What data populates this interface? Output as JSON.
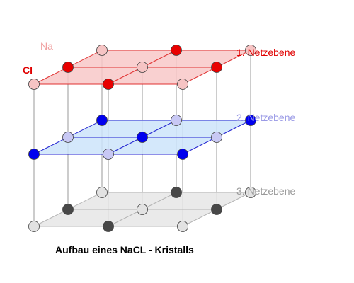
{
  "title": "Aufbau eines NaCL - Kristalls",
  "ion_labels": {
    "na": "Na",
    "cl": "Cl"
  },
  "planes": [
    {
      "label": "1. Netzebene",
      "label_color": "#e00000",
      "fill": "#f8c8c8",
      "edge": "#e03030",
      "na_color": "#f6c4c4",
      "cl_color": "#e80000"
    },
    {
      "label": "2. Netzebene",
      "label_color": "#9a9ae6",
      "fill": "#cce4fa",
      "edge": "#1f1fd0",
      "na_color": "#c8c8f4",
      "cl_color": "#0000ee"
    },
    {
      "label": "3. Netzebene",
      "label_color": "#9a9a9a",
      "fill": "#e6e6e6",
      "edge": "#b4b4b4",
      "na_color": "#e2e2e2",
      "cl_color": "#484848"
    }
  ],
  "colors": {
    "vertical_lines": "#9a9a9a",
    "ion_outline": "#404040",
    "title": "#000000"
  }
}
